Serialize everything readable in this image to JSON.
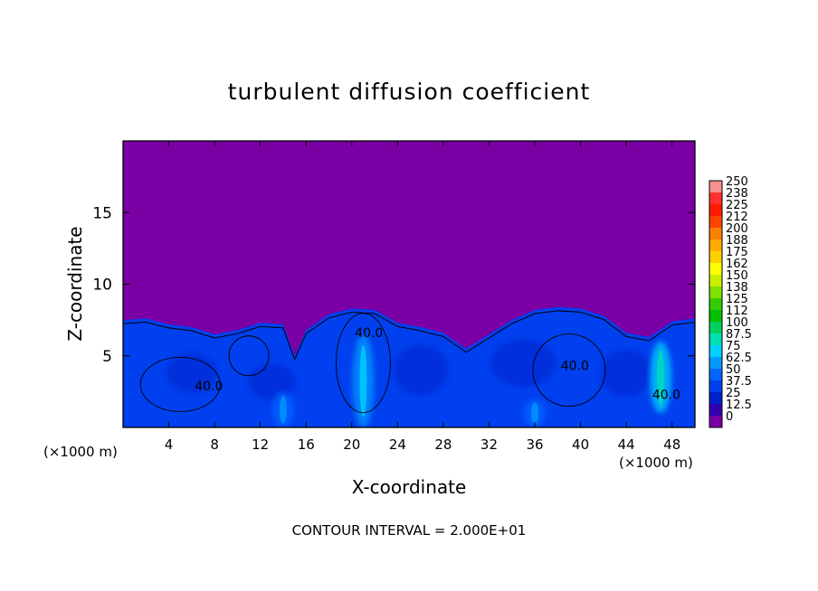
{
  "chart_data": {
    "type": "heatmap",
    "title": "turbulent diffusion coefficient",
    "xlabel": "X-coordinate",
    "ylabel": "Z-coordinate",
    "x_unit": "(×1000 m)",
    "xlim": [
      0,
      50
    ],
    "ylim": [
      0,
      20
    ],
    "x_ticks": [
      4,
      8,
      12,
      16,
      20,
      24,
      28,
      32,
      36,
      40,
      44,
      48
    ],
    "y_ticks": [
      5,
      10,
      15
    ],
    "contour_interval_text": "CONTOUR INTERVAL = 2.000E+01",
    "contour_labels": [
      {
        "text": "40.0",
        "x": 7.5,
        "z": 2.6
      },
      {
        "text": "40.0",
        "x": 21.5,
        "z": 6.3
      },
      {
        "text": "40.0",
        "x": 39.5,
        "z": 4.0
      },
      {
        "text": "40.0",
        "x": 47.5,
        "z": 2.0
      }
    ],
    "colorbar": {
      "labels": [
        "250",
        "238",
        "225",
        "212",
        "200",
        "188",
        "175",
        "162",
        "150",
        "138",
        "125",
        "112",
        "100",
        "87.5",
        "75",
        "62.5",
        "50",
        "37.5",
        "25",
        "12.5",
        "0"
      ],
      "colors": [
        "#f49090",
        "#ff3030",
        "#ff1a00",
        "#ff4500",
        "#ff8000",
        "#ffaa00",
        "#ffd000",
        "#ffff00",
        "#c8f000",
        "#80e000",
        "#33cc00",
        "#00c000",
        "#00d060",
        "#00e0b0",
        "#00d0ff",
        "#0099ff",
        "#0066ff",
        "#0040ee",
        "#0020cc",
        "#3000b0",
        "#7a00a6"
      ]
    },
    "field": {
      "background_value": 0,
      "boundary_layer_top_x": [
        0,
        2,
        4,
        6,
        8,
        10,
        12,
        14,
        15,
        16,
        18,
        20,
        22,
        24,
        26,
        28,
        30,
        32,
        34,
        36,
        38,
        40,
        42,
        44,
        46,
        48,
        50
      ],
      "boundary_layer_top_z": [
        7.5,
        7.6,
        7.2,
        7.0,
        6.5,
        6.8,
        7.3,
        7.2,
        5.0,
        6.8,
        7.9,
        8.3,
        8.2,
        7.3,
        7.0,
        6.6,
        5.5,
        6.5,
        7.5,
        8.2,
        8.4,
        8.3,
        7.8,
        6.6,
        6.3,
        7.4,
        7.6
      ],
      "interior_value": 32,
      "plumes": [
        {
          "x": 21,
          "z_bottom": 0,
          "z_top": 6.5,
          "value": 60
        },
        {
          "x": 47,
          "z_bottom": 1,
          "z_top": 6,
          "value": 78
        },
        {
          "x": 14,
          "z_bottom": 0,
          "z_top": 2.5,
          "value": 50
        },
        {
          "x": 36,
          "z_bottom": 0,
          "z_top": 2,
          "value": 45
        }
      ]
    }
  }
}
